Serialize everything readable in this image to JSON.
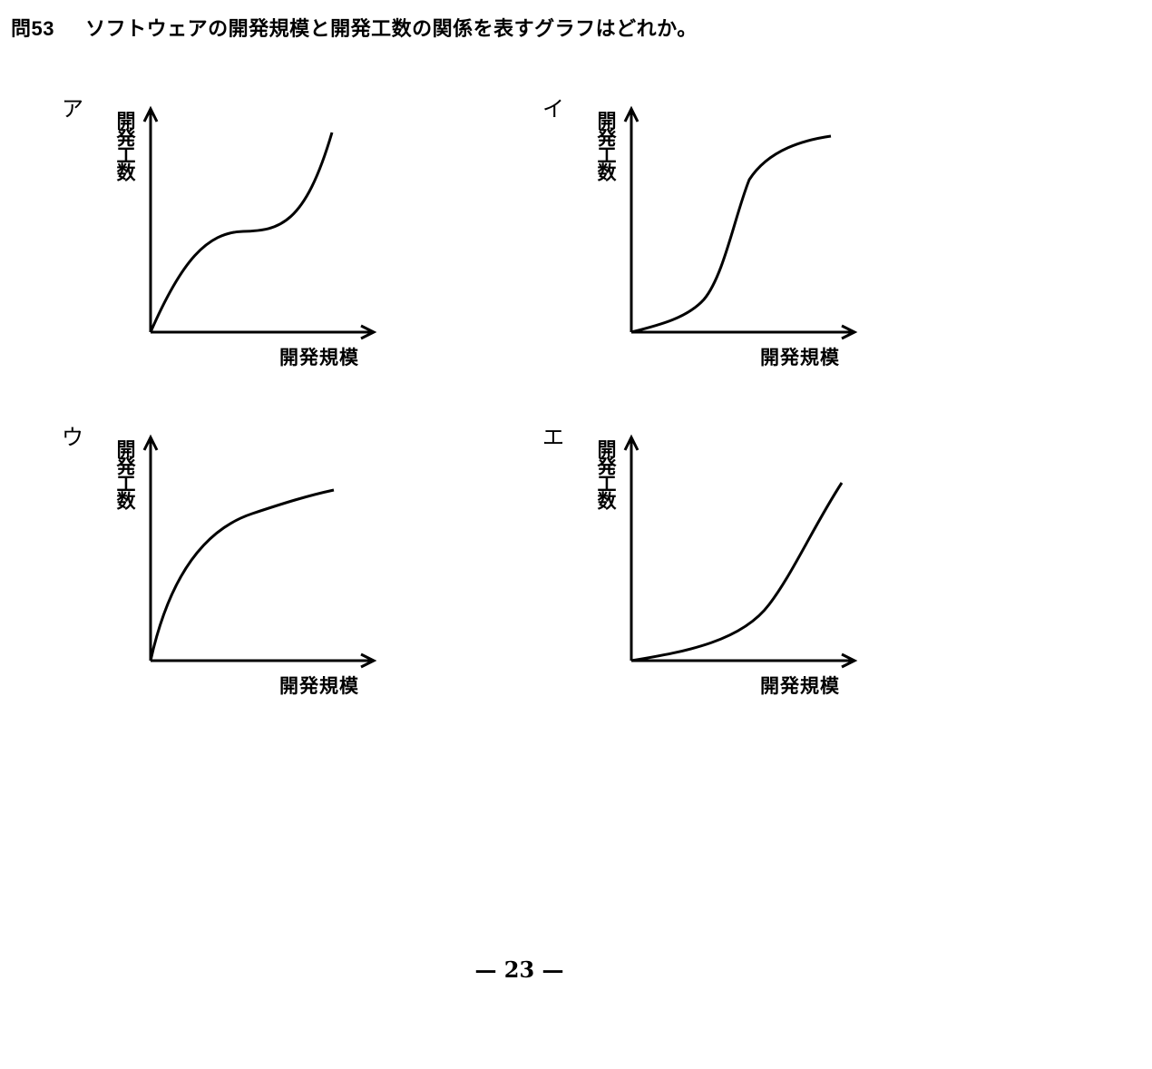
{
  "question": {
    "number": "問53",
    "text": "ソフトウェアの開発規模と開発工数の関係を表すグラフはどれか。"
  },
  "options": [
    {
      "label": "ア",
      "y_label": "開発工数",
      "x_label": "開発規模",
      "shape": "concave-then-convex"
    },
    {
      "label": "イ",
      "y_label": "開発工数",
      "x_label": "開発規模",
      "shape": "s-curve"
    },
    {
      "label": "ウ",
      "y_label": "開発工数",
      "x_label": "開発規模",
      "shape": "concave"
    },
    {
      "label": "エ",
      "y_label": "開発工数",
      "x_label": "開発規模",
      "shape": "convex"
    }
  ],
  "page": {
    "number": "— 23 —"
  }
}
